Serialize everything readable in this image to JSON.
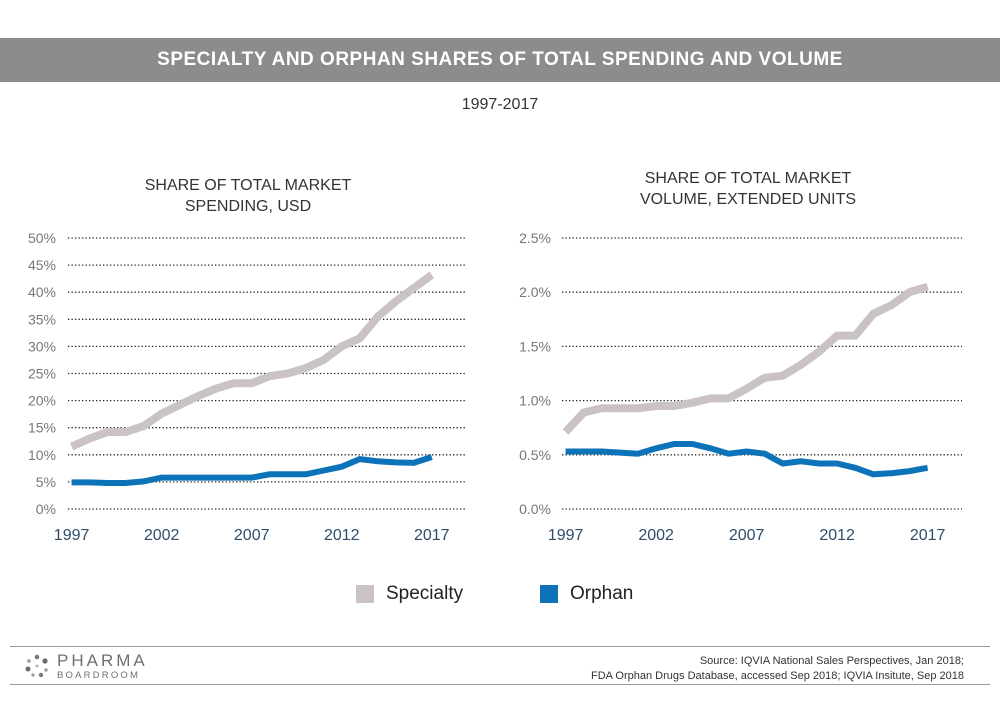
{
  "header": {
    "title": "SPECIALTY AND ORPHAN SHARES OF TOTAL SPENDING AND VOLUME",
    "subtitle": "1997-2017"
  },
  "colors": {
    "specialty": "#cbc3c3",
    "orphan": "#0d73b8",
    "banner": "#8c8c8c"
  },
  "legend": {
    "specialty": "Specialty",
    "orphan": "Orphan"
  },
  "chart_data": [
    {
      "type": "line",
      "title_lines": [
        "SHARE OF TOTAL MARKET",
        "SPENDING, USD"
      ],
      "y_ticks": [
        "50%",
        "45%",
        "40%",
        "35%",
        "30%",
        "25%",
        "20%",
        "15%",
        "10%",
        "5%",
        "0%"
      ],
      "x_ticks": [
        "1997",
        "2002",
        "2007",
        "2012",
        "2017"
      ],
      "ylim": [
        0,
        50
      ],
      "xlim": [
        1996.8,
        2018.9
      ],
      "grid": true,
      "x": [
        1997,
        1998,
        1999,
        2000,
        2001,
        2002,
        2003,
        2004,
        2005,
        2006,
        2007,
        2008,
        2009,
        2010,
        2011,
        2012,
        2013,
        2014,
        2015,
        2016,
        2017
      ],
      "series": [
        {
          "name": "Specialty",
          "values": [
            11.5,
            13,
            14.2,
            14.2,
            15.3,
            17.6,
            19.2,
            20.8,
            22.2,
            23.2,
            23.2,
            24.5,
            25.0,
            26.0,
            27.5,
            30.0,
            31.5,
            35.5,
            38.3,
            40.8,
            43.2
          ]
        },
        {
          "name": "Orphan",
          "values": [
            4.9,
            4.9,
            4.8,
            4.8,
            5.1,
            5.8,
            5.8,
            5.8,
            5.8,
            5.8,
            5.8,
            6.4,
            6.4,
            6.4,
            7.1,
            7.8,
            9.2,
            8.8,
            8.6,
            8.5,
            9.6
          ]
        }
      ]
    },
    {
      "type": "line",
      "title_lines": [
        "SHARE OF TOTAL MARKET",
        "VOLUME, EXTENDED UNITS"
      ],
      "y_ticks": [
        "2.5%",
        "2.0%",
        "1.5%",
        "1.0%",
        "0.5%",
        "0.0%"
      ],
      "x_ticks": [
        "1997",
        "2002",
        "2007",
        "2012",
        "2017"
      ],
      "ylim": [
        0,
        2.5
      ],
      "xlim": [
        1996.8,
        2018.9
      ],
      "grid": true,
      "x": [
        1997,
        1998,
        1999,
        2000,
        2001,
        2002,
        2003,
        2004,
        2005,
        2006,
        2007,
        2008,
        2009,
        2010,
        2011,
        2012,
        2013,
        2014,
        2015,
        2016,
        2017
      ],
      "series": [
        {
          "name": "Specialty",
          "values": [
            0.71,
            0.89,
            0.93,
            0.93,
            0.93,
            0.95,
            0.95,
            0.98,
            1.02,
            1.02,
            1.11,
            1.21,
            1.23,
            1.33,
            1.45,
            1.6,
            1.6,
            1.8,
            1.88,
            2.0,
            2.05
          ]
        },
        {
          "name": "Orphan",
          "values": [
            0.53,
            0.53,
            0.53,
            0.52,
            0.51,
            0.56,
            0.6,
            0.6,
            0.56,
            0.51,
            0.53,
            0.51,
            0.42,
            0.44,
            0.42,
            0.42,
            0.38,
            0.32,
            0.33,
            0.35,
            0.38
          ]
        }
      ]
    }
  ],
  "footer": {
    "logo_main": "PHARMA",
    "logo_sub": "BOARDROOM",
    "source_line1": "Source: IQVIA National Sales Perspectives, Jan 2018;",
    "source_line2": "FDA Orphan Drugs Database, accessed Sep 2018; IQVIA Insitute, Sep 2018"
  }
}
